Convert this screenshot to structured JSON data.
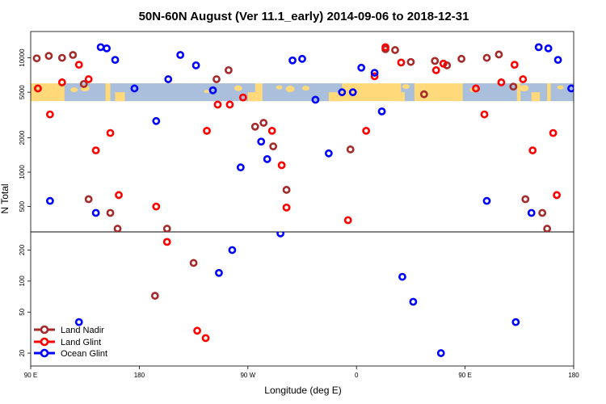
{
  "chart_data": {
    "type": "scatter",
    "title": "50N-60N August (Ver 11.1_early)   2014-09-06 to 2018-12-31",
    "xlabel": "Longitude (deg E)",
    "ylabel": "N Total",
    "x_ticks": [
      {
        "value": 90,
        "label": "90 E"
      },
      {
        "value": 180,
        "label": "180"
      },
      {
        "value": 270,
        "label": "90 W"
      },
      {
        "value": 360,
        "label": "0"
      },
      {
        "value": 450,
        "label": "90 E"
      },
      {
        "value": 540,
        "label": "180"
      }
    ],
    "xlim": [
      90,
      540
    ],
    "y_upper_ticks": [
      500,
      1000,
      2000,
      5000,
      10000
    ],
    "y_lower_ticks": [
      20,
      50,
      100,
      200
    ],
    "y_upper_lim": [
      300,
      17000
    ],
    "y_lower_lim": [
      15,
      300
    ],
    "map_band_center": 5000,
    "colors": {
      "land_nadir": "#a52a2a",
      "land_glint": "#ff0000",
      "ocean_glint": "#0000ff",
      "land": "#ffd97a",
      "ocean": "#a9bfdc"
    },
    "legend": {
      "position": "bottom-left",
      "entries": [
        "Land Nadir",
        "Land Glint",
        "Ocean Glint"
      ]
    },
    "series": [
      {
        "name": "Land Nadir",
        "color": "#a52a2a",
        "points": [
          [
            95,
            9900
          ],
          [
            105,
            10400
          ],
          [
            116,
            10000
          ],
          [
            125,
            10600
          ],
          [
            134,
            5900
          ],
          [
            138,
            580
          ],
          [
            156,
            440
          ],
          [
            162,
            320
          ],
          [
            193,
            72
          ],
          [
            203,
            320
          ],
          [
            225,
            150
          ],
          [
            244,
            6500
          ],
          [
            254,
            7800
          ],
          [
            276,
            2500
          ],
          [
            283,
            2700
          ],
          [
            291,
            1680
          ],
          [
            302,
            700
          ],
          [
            355,
            1580
          ],
          [
            384,
            11900
          ],
          [
            392,
            11700
          ],
          [
            405,
            9200
          ],
          [
            416,
            4800
          ],
          [
            425,
            9400
          ],
          [
            435,
            8600
          ],
          [
            447,
            9800
          ],
          [
            468,
            10000
          ],
          [
            478,
            10700
          ],
          [
            490,
            5600
          ],
          [
            500,
            580
          ],
          [
            514,
            440
          ],
          [
            518,
            320
          ]
        ]
      },
      {
        "name": "Land Glint",
        "color": "#ff0000",
        "points": [
          [
            96,
            5400
          ],
          [
            106,
            3200
          ],
          [
            116,
            6100
          ],
          [
            130,
            8700
          ],
          [
            138,
            6500
          ],
          [
            144,
            1550
          ],
          [
            156,
            2200
          ],
          [
            163,
            630
          ],
          [
            194,
            500
          ],
          [
            203,
            240
          ],
          [
            228,
            33
          ],
          [
            235,
            28
          ],
          [
            236,
            2300
          ],
          [
            245,
            3900
          ],
          [
            255,
            3900
          ],
          [
            266,
            4500
          ],
          [
            290,
            2300
          ],
          [
            298,
            1150
          ],
          [
            302,
            490
          ],
          [
            353,
            380
          ],
          [
            368,
            2300
          ],
          [
            375,
            6900
          ],
          [
            384,
            12400
          ],
          [
            397,
            9100
          ],
          [
            426,
            7800
          ],
          [
            432,
            8900
          ],
          [
            459,
            5400
          ],
          [
            466,
            3200
          ],
          [
            480,
            6100
          ],
          [
            491,
            8700
          ],
          [
            498,
            6500
          ],
          [
            506,
            1550
          ],
          [
            523,
            2200
          ],
          [
            526,
            630
          ]
        ]
      },
      {
        "name": "Ocean Glint",
        "color": "#0000ff",
        "points": [
          [
            106,
            560
          ],
          [
            130,
            40
          ],
          [
            144,
            440
          ],
          [
            148,
            12400
          ],
          [
            153,
            12100
          ],
          [
            160,
            9600
          ],
          [
            176,
            5400
          ],
          [
            194,
            2800
          ],
          [
            204,
            6500
          ],
          [
            214,
            10600
          ],
          [
            227,
            8600
          ],
          [
            241,
            5200
          ],
          [
            246,
            120
          ],
          [
            257,
            200
          ],
          [
            264,
            1100
          ],
          [
            281,
            1850
          ],
          [
            286,
            1300
          ],
          [
            297,
            290
          ],
          [
            307,
            9500
          ],
          [
            315,
            9800
          ],
          [
            326,
            4300
          ],
          [
            337,
            1460
          ],
          [
            348,
            5000
          ],
          [
            357,
            5000
          ],
          [
            364,
            8200
          ],
          [
            375,
            7400
          ],
          [
            381,
            3400
          ],
          [
            398,
            110
          ],
          [
            407,
            63
          ],
          [
            430,
            20
          ],
          [
            468,
            560
          ],
          [
            492,
            40
          ],
          [
            505,
            440
          ],
          [
            511,
            12400
          ],
          [
            519,
            12100
          ],
          [
            527,
            9600
          ],
          [
            538,
            5400
          ]
        ]
      }
    ]
  }
}
